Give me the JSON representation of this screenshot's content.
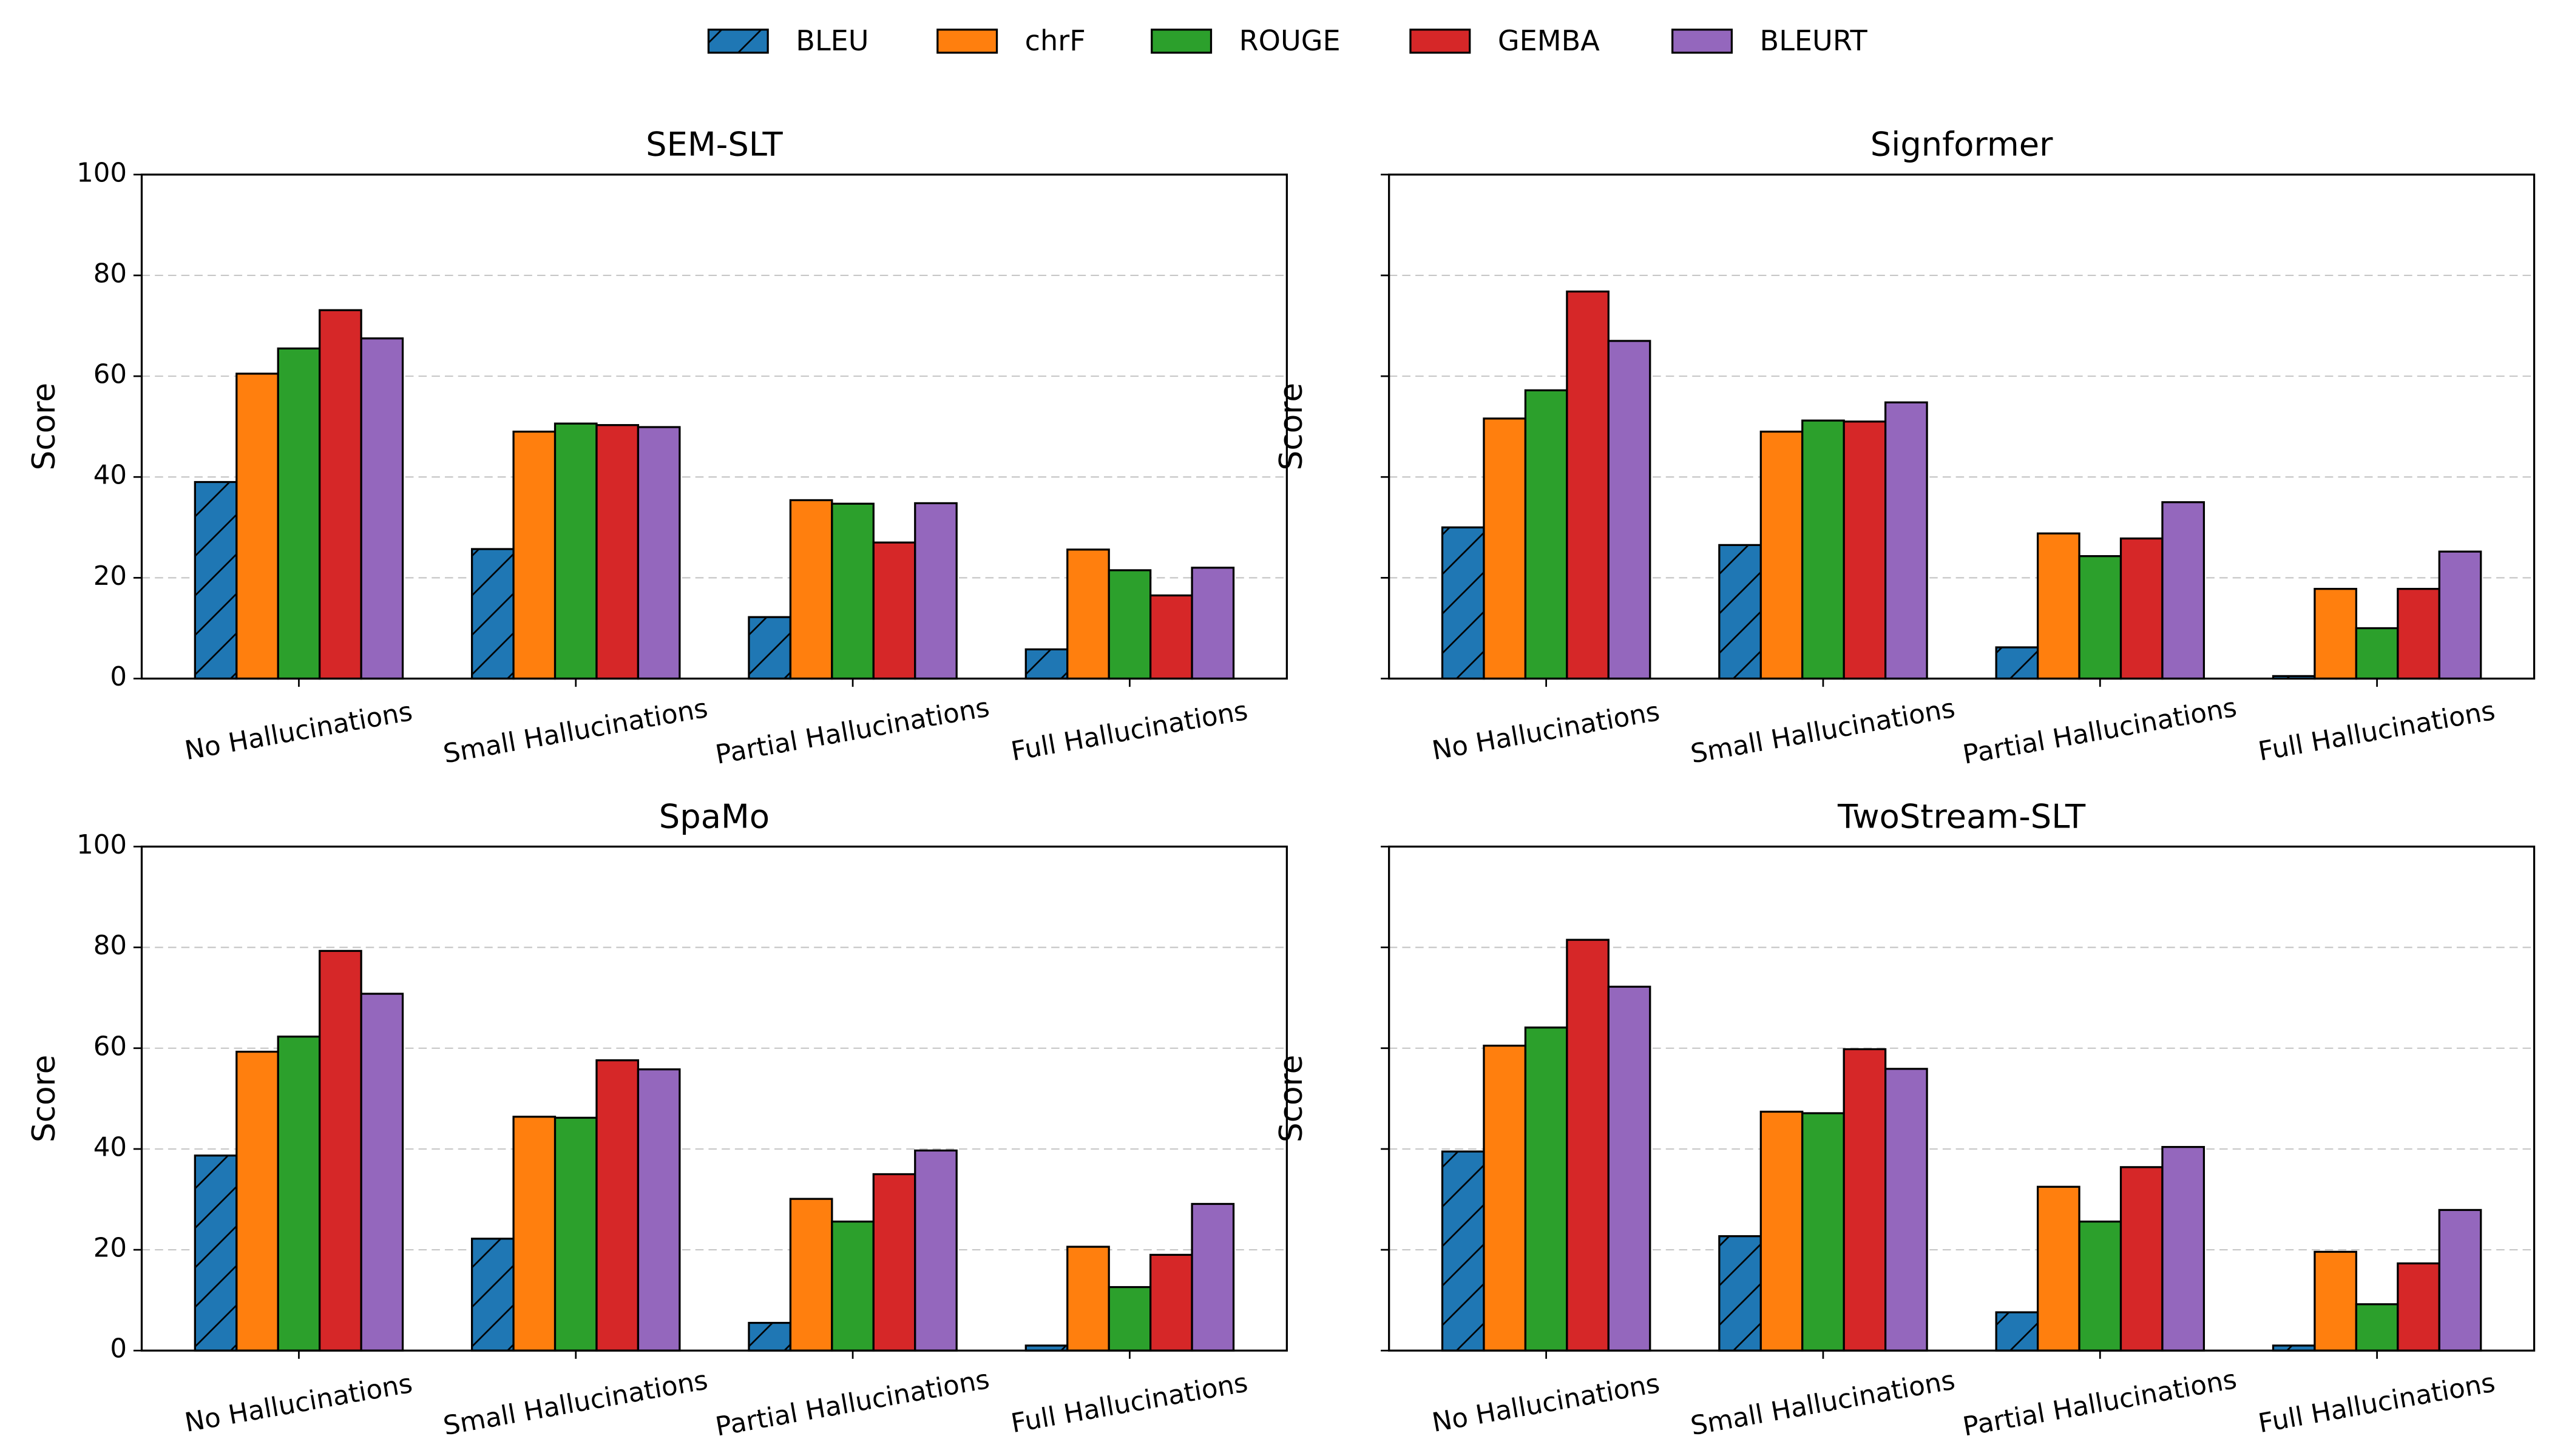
{
  "chart_data": [
    {
      "type": "bar",
      "title": "SEM-SLT",
      "ylabel": "Score",
      "categories": [
        "No Hallucinations",
        "Small Hallucinations",
        "Partial Hallucinations",
        "Full Hallucinations"
      ],
      "series": [
        {
          "name": "BLEU",
          "color": "#1f77b4",
          "hatch": "/",
          "values": [
            39,
            25.7,
            12.2,
            5.8
          ]
        },
        {
          "name": "chrF",
          "color": "#ff7f0e",
          "values": [
            60.5,
            49,
            35.4,
            25.6
          ]
        },
        {
          "name": "ROUGE",
          "color": "#2ca02c",
          "values": [
            65.5,
            50.6,
            34.7,
            21.5
          ]
        },
        {
          "name": "GEMBA",
          "color": "#d62728",
          "values": [
            73.1,
            50.3,
            27,
            16.5
          ]
        },
        {
          "name": "BLEURT",
          "color": "#9467bd",
          "values": [
            67.5,
            49.9,
            34.8,
            22
          ]
        }
      ],
      "ylim": [
        0,
        100
      ],
      "yticks": [
        0,
        20,
        40,
        60,
        80,
        100
      ],
      "grid": true
    },
    {
      "type": "bar",
      "title": "Signformer",
      "ylabel": "Score",
      "categories": [
        "No Hallucinations",
        "Small Hallucinations",
        "Partial Hallucinations",
        "Full Hallucinations"
      ],
      "series": [
        {
          "name": "BLEU",
          "color": "#1f77b4",
          "hatch": "/",
          "values": [
            30,
            26.5,
            6.2,
            0.5
          ]
        },
        {
          "name": "chrF",
          "color": "#ff7f0e",
          "values": [
            51.6,
            49,
            28.8,
            17.8
          ]
        },
        {
          "name": "ROUGE",
          "color": "#2ca02c",
          "values": [
            57.2,
            51.2,
            24.3,
            10
          ]
        },
        {
          "name": "GEMBA",
          "color": "#d62728",
          "values": [
            76.8,
            51,
            27.8,
            17.8
          ]
        },
        {
          "name": "BLEURT",
          "color": "#9467bd",
          "values": [
            67,
            54.8,
            35,
            25.2
          ]
        }
      ],
      "ylim": [
        0,
        100
      ],
      "yticks": [
        0,
        20,
        40,
        60,
        80,
        100
      ],
      "grid": true
    },
    {
      "type": "bar",
      "title": "SpaMo",
      "ylabel": "Score",
      "categories": [
        "No Hallucinations",
        "Small Hallucinations",
        "Partial Hallucinations",
        "Full Hallucinations"
      ],
      "series": [
        {
          "name": "BLEU",
          "color": "#1f77b4",
          "hatch": "/",
          "values": [
            38.7,
            22.2,
            5.5,
            1
          ]
        },
        {
          "name": "chrF",
          "color": "#ff7f0e",
          "values": [
            59.3,
            46.4,
            30.1,
            20.6
          ]
        },
        {
          "name": "ROUGE",
          "color": "#2ca02c",
          "values": [
            62.3,
            46.2,
            25.6,
            12.6
          ]
        },
        {
          "name": "GEMBA",
          "color": "#d62728",
          "values": [
            79.3,
            57.6,
            35,
            19
          ]
        },
        {
          "name": "BLEURT",
          "color": "#9467bd",
          "values": [
            70.8,
            55.8,
            39.7,
            29.1
          ]
        }
      ],
      "ylim": [
        0,
        100
      ],
      "yticks": [
        0,
        20,
        40,
        60,
        80,
        100
      ],
      "grid": true
    },
    {
      "type": "bar",
      "title": "TwoStream-SLT",
      "ylabel": "Score",
      "categories": [
        "No Hallucinations",
        "Small Hallucinations",
        "Partial Hallucinations",
        "Full Hallucinations"
      ],
      "series": [
        {
          "name": "BLEU",
          "color": "#1f77b4",
          "hatch": "/",
          "values": [
            39.5,
            22.7,
            7.6,
            1
          ]
        },
        {
          "name": "chrF",
          "color": "#ff7f0e",
          "values": [
            60.5,
            47.4,
            32.5,
            19.6
          ]
        },
        {
          "name": "ROUGE",
          "color": "#2ca02c",
          "values": [
            64.1,
            47.1,
            25.6,
            9.2
          ]
        },
        {
          "name": "GEMBA",
          "color": "#d62728",
          "values": [
            81.5,
            59.8,
            36.4,
            17.3
          ]
        },
        {
          "name": "BLEURT",
          "color": "#9467bd",
          "values": [
            72.2,
            55.9,
            40.4,
            27.9
          ]
        }
      ],
      "ylim": [
        0,
        100
      ],
      "yticks": [
        0,
        20,
        40,
        60,
        80,
        100
      ],
      "grid": true
    }
  ]
}
